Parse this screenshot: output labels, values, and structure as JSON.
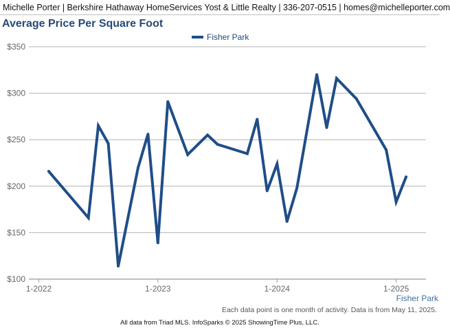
{
  "header": {
    "text": "Michelle Porter | Berkshire Hathaway HomeServices Yost & Little Realty | 336-207-0515 | homes@michelleporter.com"
  },
  "colors": {
    "series": "#1f4e87",
    "title": "#244a78",
    "grid": "#b3b3b3",
    "axis_text": "#666666",
    "corner_label": "#3f6ea4"
  },
  "chart_data": {
    "type": "line",
    "title": "Average Price Per Square Foot",
    "ylim": [
      100,
      350
    ],
    "yticks": [
      100,
      150,
      200,
      250,
      300,
      350
    ],
    "ytick_labels": [
      "$100",
      "$150",
      "$200",
      "$250",
      "$300",
      "$350"
    ],
    "xlim": [
      "2021-12",
      "2025-04"
    ],
    "xticks": [
      "2022-01",
      "2023-01",
      "2024-01",
      "2025-01"
    ],
    "xtick_labels": [
      "1-2022",
      "1-2023",
      "1-2024",
      "1-2025"
    ],
    "grid": true,
    "legend_position": "top-center",
    "corner_label": "Fisher Park",
    "series": [
      {
        "name": "Fisher Park",
        "points": [
          {
            "x": "2022-02",
            "y": 216
          },
          {
            "x": "2022-06",
            "y": 166
          },
          {
            "x": "2022-07",
            "y": 265
          },
          {
            "x": "2022-08",
            "y": 246
          },
          {
            "x": "2022-09",
            "y": 114
          },
          {
            "x": "2022-11",
            "y": 220
          },
          {
            "x": "2022-12",
            "y": 256
          },
          {
            "x": "2023-01",
            "y": 139
          },
          {
            "x": "2023-02",
            "y": 291
          },
          {
            "x": "2023-04",
            "y": 234
          },
          {
            "x": "2023-06",
            "y": 255
          },
          {
            "x": "2023-07",
            "y": 245
          },
          {
            "x": "2023-10",
            "y": 235
          },
          {
            "x": "2023-11",
            "y": 272
          },
          {
            "x": "2023-12",
            "y": 195
          },
          {
            "x": "2024-01",
            "y": 224
          },
          {
            "x": "2024-02",
            "y": 162
          },
          {
            "x": "2024-03",
            "y": 198
          },
          {
            "x": "2024-05",
            "y": 320
          },
          {
            "x": "2024-06",
            "y": 263
          },
          {
            "x": "2024-07",
            "y": 316
          },
          {
            "x": "2024-09",
            "y": 294
          },
          {
            "x": "2024-12",
            "y": 239
          },
          {
            "x": "2025-01",
            "y": 183
          },
          {
            "x": "2025-02",
            "y": 210
          }
        ]
      }
    ]
  },
  "footer": {
    "note": "Each data point is one month of activity. Data is from May 11, 2025.",
    "credit": "All data from Triad MLS. InfoSparks © 2025 ShowingTime Plus, LLC."
  }
}
